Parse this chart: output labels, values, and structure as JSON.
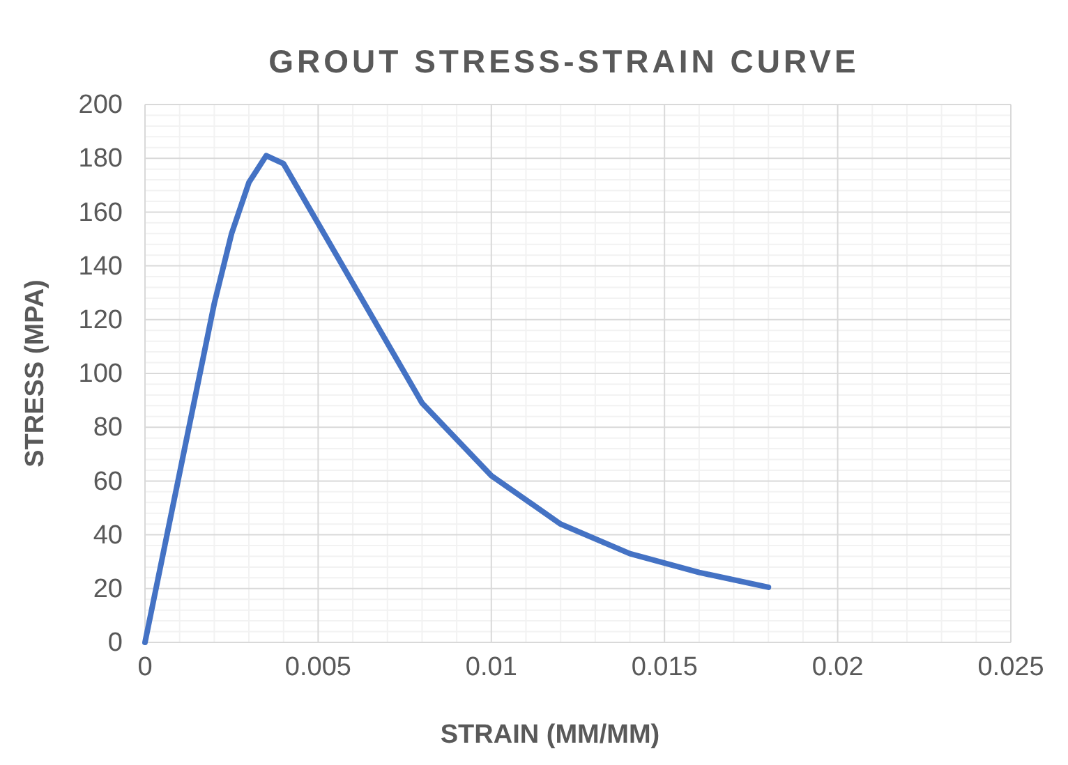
{
  "chart_data": {
    "type": "line",
    "title": "GROUT STRESS-STRAIN CURVE",
    "xlabel": "STRAIN (MM/MM)",
    "ylabel": "STRESS (MPA)",
    "x": [
      0,
      0.002,
      0.0025,
      0.003,
      0.0035,
      0.004,
      0.008,
      0.01,
      0.012,
      0.014,
      0.016,
      0.018
    ],
    "series": [
      {
        "color": "#4472c4",
        "values": [
          0,
          126,
          152,
          171,
          181,
          178,
          89,
          62,
          44,
          33,
          26,
          20.5
        ]
      }
    ],
    "xlim": [
      0,
      0.025
    ],
    "xticks": [
      0,
      0.005,
      0.01,
      0.015,
      0.02,
      0.025
    ],
    "ylim": [
      0,
      200
    ],
    "yticks": [
      0,
      20,
      40,
      60,
      80,
      100,
      120,
      140,
      160,
      180,
      200
    ],
    "grid": true,
    "marker": "none",
    "line_style": "solid"
  }
}
